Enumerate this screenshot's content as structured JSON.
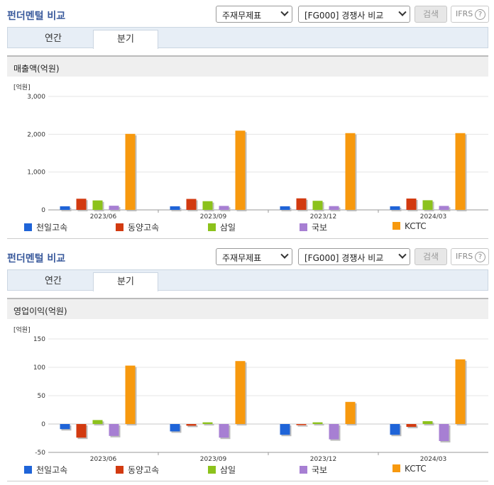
{
  "panels": [
    {
      "title": "펀더멘털 비교",
      "select_type": "주재무제표",
      "select_group": "[FG000] 경쟁사 비교",
      "search_label": "검색",
      "ifrs_label": "IFRS",
      "help_glyph": "?",
      "tabs": [
        "연간",
        "분기"
      ],
      "active_tab": "분기",
      "metric_title": "매출액(억원)"
    },
    {
      "title": "펀더멘털 비교",
      "select_type": "주재무제표",
      "select_group": "[FG000] 경쟁사 비교",
      "search_label": "검색",
      "ifrs_label": "IFRS",
      "help_glyph": "?",
      "tabs": [
        "연간",
        "분기"
      ],
      "active_tab": "분기",
      "metric_title": "영업이익(억원)"
    }
  ],
  "colors": {
    "천일고속": "#1f64d8",
    "동양고속": "#d23a10",
    "삼일": "#8cc21c",
    "국보": "#a77fd3",
    "KCTC": "#f7990e"
  },
  "chart_data": [
    {
      "type": "bar",
      "unit_label": "[억원]",
      "categories": [
        "2023/06",
        "2023/09",
        "2023/12",
        "2024/03"
      ],
      "ylim": [
        0,
        3000
      ],
      "yticks": [
        0,
        1000,
        2000,
        3000
      ],
      "ytick_labels": [
        "0",
        "1,000",
        "2,000",
        "3,000"
      ],
      "grid": true,
      "legend_position": "bottom",
      "series": [
        {
          "name": "천일고속",
          "values": [
            95,
            95,
            95,
            95
          ]
        },
        {
          "name": "동양고속",
          "values": [
            295,
            290,
            305,
            300
          ]
        },
        {
          "name": "삼일",
          "values": [
            250,
            230,
            240,
            255
          ]
        },
        {
          "name": "국보",
          "values": [
            110,
            105,
            100,
            105
          ]
        },
        {
          "name": "KCTC",
          "values": [
            2010,
            2095,
            2030,
            2030
          ]
        }
      ]
    },
    {
      "type": "bar",
      "unit_label": "[억원]",
      "categories": [
        "2023/06",
        "2023/09",
        "2023/12",
        "2024/03"
      ],
      "ylim": [
        -50,
        150
      ],
      "yticks": [
        -50,
        0,
        50,
        100,
        150
      ],
      "ytick_labels": [
        "-50",
        "0",
        "50",
        "100",
        "150"
      ],
      "grid": true,
      "legend_position": "bottom",
      "series": [
        {
          "name": "천일고속",
          "values": [
            -9,
            -13,
            -19,
            -19
          ]
        },
        {
          "name": "동양고속",
          "values": [
            -24,
            -3,
            -2,
            -5
          ]
        },
        {
          "name": "삼일",
          "values": [
            7,
            3,
            3,
            5
          ]
        },
        {
          "name": "국보",
          "values": [
            -21,
            -24,
            -27,
            -30
          ]
        },
        {
          "name": "KCTC",
          "values": [
            103,
            111,
            39,
            114
          ]
        }
      ]
    }
  ]
}
